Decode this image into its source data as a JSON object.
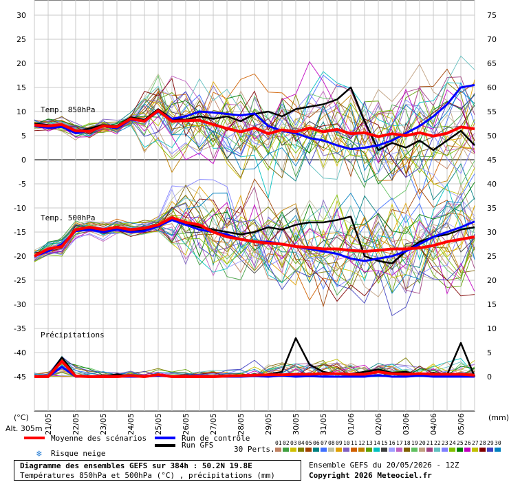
{
  "chart_data": {
    "type": "line",
    "title": "Diagramme des ensembles GEFS sur 384h : 50.2N 19.8E",
    "subtitle": "Températures 850hPa et 500hPa (°C) , précipitations (mm)",
    "left_axis": {
      "unit_label": "(°C)",
      "ticks": [
        30,
        25,
        20,
        15,
        10,
        5,
        0,
        -5,
        -10,
        -15,
        -20,
        -25,
        -30,
        -35,
        -40,
        -45
      ]
    },
    "right_axis": {
      "unit_label": "(mm)",
      "ticks": [
        75,
        70,
        65,
        60,
        55,
        50,
        45,
        40,
        35,
        30,
        25,
        20,
        15,
        10,
        5,
        0
      ]
    },
    "altitude": "Alt. 305m",
    "x_tick_labels": [
      "21/05",
      "22/05",
      "23/05",
      "24/05",
      "25/05",
      "26/05",
      "27/05",
      "28/05",
      "29/05",
      "30/05",
      "31/05",
      "01/06",
      "02/06",
      "03/06",
      "04/06",
      "05/06"
    ],
    "panels": [
      {
        "name": "Temp. 850hPa",
        "series": [
          {
            "name": "Moyenne des scénarios",
            "values": [
              7.2,
              7.0,
              7.3,
              6.0,
              5.9,
              7.0,
              6.8,
              8.5,
              8.0,
              10.2,
              8.0,
              8.1,
              8.2,
              7.3,
              6.5,
              5.8,
              6.6,
              5.4,
              6.2,
              5.8,
              6.6,
              5.8,
              6.3,
              5.4,
              5.6,
              4.8,
              5.4,
              5.0,
              5.6,
              4.9,
              5.5,
              6.8,
              6.4
            ]
          },
          {
            "name": "Run de contrôle",
            "values": [
              7.0,
              6.6,
              6.8,
              5.5,
              6.0,
              7.0,
              6.5,
              8.3,
              8.0,
              10.0,
              8.5,
              9.0,
              10.0,
              9.8,
              9.5,
              9.2,
              9.6,
              7.0,
              6.0,
              5.5,
              4.5,
              4.0,
              3.0,
              2.2,
              2.5,
              3.0,
              4.0,
              5.5,
              7.0,
              9.0,
              11.5,
              15.0,
              15.5
            ]
          },
          {
            "name": "Run GFS",
            "values": [
              7.5,
              7.2,
              7.0,
              5.8,
              6.5,
              7.2,
              7.0,
              8.8,
              8.3,
              10.5,
              8.5,
              8.3,
              9.0,
              8.5,
              9.0,
              8.0,
              9.5,
              10.0,
              9.0,
              10.5,
              11.0,
              11.5,
              12.5,
              15.0,
              8.0,
              2.0,
              3.5,
              2.5,
              4.0,
              2.0,
              4.0,
              6.0,
              3.0
            ]
          }
        ]
      },
      {
        "name": "Temp. 500hPa",
        "series": [
          {
            "name": "Moyenne des scénarios",
            "values": [
              -20.0,
              -18.5,
              -18.0,
              -14.5,
              -14.0,
              -14.5,
              -14.0,
              -14.5,
              -14.2,
              -13.5,
              -12.0,
              -13.0,
              -13.5,
              -15.0,
              -16.0,
              -16.5,
              -17.0,
              -17.3,
              -17.5,
              -18.0,
              -18.2,
              -18.5,
              -18.5,
              -18.8,
              -19.0,
              -18.8,
              -18.5,
              -18.5,
              -18.3,
              -17.8,
              -17.0,
              -16.5,
              -16.0
            ]
          },
          {
            "name": "Run de contrôle",
            "values": [
              -20.0,
              -19.0,
              -17.5,
              -14.8,
              -14.5,
              -15.0,
              -14.5,
              -15.0,
              -14.8,
              -13.8,
              -12.5,
              -13.5,
              -14.5,
              -15.0,
              -15.5,
              -16.5,
              -17.0,
              -17.0,
              -17.5,
              -18.0,
              -18.5,
              -19.0,
              -19.5,
              -20.5,
              -21.0,
              -20.5,
              -20.0,
              -19.0,
              -17.5,
              -16.0,
              -15.0,
              -14.0,
              -12.8
            ]
          },
          {
            "name": "Run GFS",
            "values": [
              -20.0,
              -18.8,
              -17.8,
              -14.5,
              -14.3,
              -14.8,
              -14.2,
              -14.8,
              -14.5,
              -13.6,
              -12.0,
              -13.2,
              -14.0,
              -14.5,
              -15.0,
              -15.5,
              -15.0,
              -14.0,
              -14.5,
              -13.5,
              -13.0,
              -13.0,
              -12.5,
              -11.8,
              -20.0,
              -21.0,
              -21.5,
              -19.0,
              -17.0,
              -16.0,
              -15.5,
              -14.5,
              -14.0
            ]
          }
        ]
      },
      {
        "name": "Précipitations",
        "series": [
          {
            "name": "Moyenne des scénarios",
            "values": [
              0,
              0,
              3.2,
              0.1,
              0,
              0,
              0,
              0.2,
              0,
              0.4,
              0,
              0,
              0,
              0,
              0.1,
              0.2,
              0.3,
              0.4,
              0.4,
              0.5,
              0.5,
              0.6,
              0.6,
              0.5,
              0.5,
              1.0,
              0.6,
              0.5,
              0.6,
              0.5,
              0.5,
              0.5,
              0.3
            ]
          },
          {
            "name": "Run de contrôle",
            "values": [
              0,
              0,
              2.0,
              0,
              0,
              0,
              0,
              0,
              0,
              0.2,
              0,
              0,
              0,
              0,
              0,
              0,
              0.1,
              0,
              0.2,
              0,
              0.1,
              0,
              0,
              0,
              0,
              0.3,
              0,
              0,
              0.2,
              0,
              0,
              0,
              0
            ]
          },
          {
            "name": "Run GFS",
            "values": [
              0,
              0,
              4.0,
              0.2,
              0,
              0,
              0.5,
              0,
              0,
              0.3,
              0,
              0,
              0,
              0,
              0,
              0,
              0.2,
              0.5,
              1.0,
              8.0,
              2.5,
              1.0,
              0.5,
              0.6,
              1.0,
              1.5,
              0.8,
              1.0,
              0.3,
              0.8,
              0.4,
              7.0,
              0
            ]
          }
        ]
      }
    ],
    "legend": {
      "mean": {
        "label": "Moyenne des scénarios",
        "color": "#ff0000"
      },
      "control": {
        "label": "Run de contrôle",
        "color": "#0000ff"
      },
      "gfs": {
        "label": "Run GFS",
        "color": "#000000"
      },
      "snow": {
        "label": "Risque neige",
        "icon": "snowflake-icon",
        "color": "#2a7fd4"
      },
      "perturbations_label": "30 Perts.",
      "perturbation_numbers": [
        "01",
        "02",
        "03",
        "04",
        "05",
        "06",
        "07",
        "08",
        "09",
        "10",
        "11",
        "12",
        "13",
        "14",
        "15",
        "16",
        "17",
        "18",
        "19",
        "20",
        "21",
        "22",
        "23",
        "24",
        "25",
        "26",
        "27",
        "28",
        "29",
        "30"
      ],
      "perturbation_colors": [
        "#c08060",
        "#40a040",
        "#d0c000",
        "#808000",
        "#a04000",
        "#008080",
        "#4070ff",
        "#c0c0a0",
        "#e0a000",
        "#8060c0",
        "#d06000",
        "#c08000",
        "#60a000",
        "#00c0c0",
        "#404040",
        "#a0a0ff",
        "#c060c0",
        "#806000",
        "#60c060",
        "#c0a080",
        "#a04080",
        "#60c0c0",
        "#8080ff",
        "#80c000",
        "#008000",
        "#c000c0",
        "#c0c000",
        "#800000",
        "#4040c0",
        "#0080c0"
      ]
    },
    "footer": {
      "ensemble_info": "Ensemble GEFS du 20/05/2026 - 12Z",
      "copyright": "Copyright 2026 Meteociel.fr"
    }
  }
}
